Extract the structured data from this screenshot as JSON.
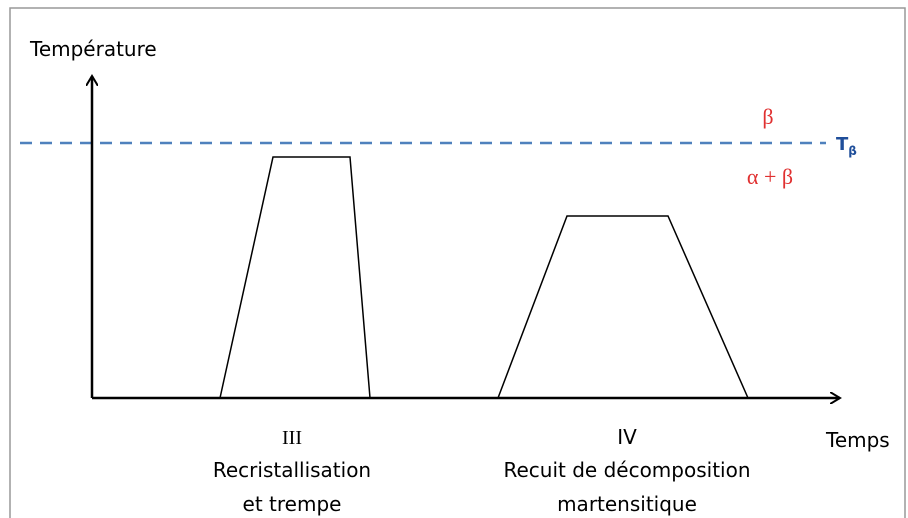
{
  "axes": {
    "y_label": "Température",
    "x_label": "Temps"
  },
  "transus": {
    "label_T": "T",
    "label_sub": "β",
    "above": "β",
    "below": "α + β"
  },
  "treatments": [
    {
      "label": "III",
      "caption": [
        "Recristallisation",
        "et trempe"
      ]
    },
    {
      "label": "IV",
      "caption": [
        "Recuit de décomposition",
        "martensitique"
      ]
    }
  ]
}
